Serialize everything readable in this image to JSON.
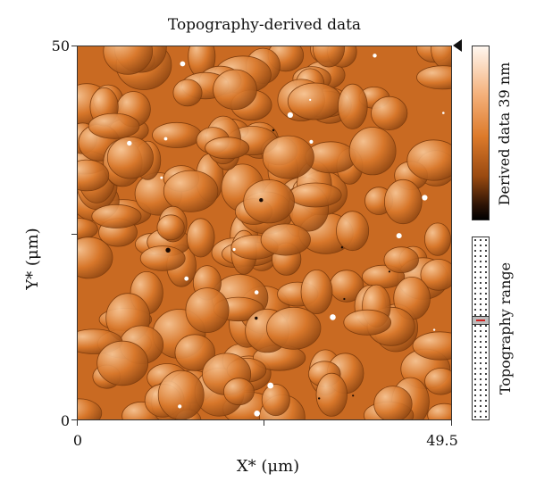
{
  "figure": {
    "title": "Topography-derived data",
    "x_axis": {
      "label": "X* (μm)",
      "tick_left": "0",
      "tick_right": "49.5"
    },
    "y_axis": {
      "label": "Y* (μm)",
      "tick_top": "50",
      "tick_bottom": "0"
    },
    "colorbar": {
      "label": "Derived data 39 nm"
    },
    "range_indicator": {
      "label": "Topography range"
    },
    "colors": {
      "image_base": "#d9782b",
      "highlight": "#fbe3c8",
      "shadow": "#5a2a08"
    }
  }
}
